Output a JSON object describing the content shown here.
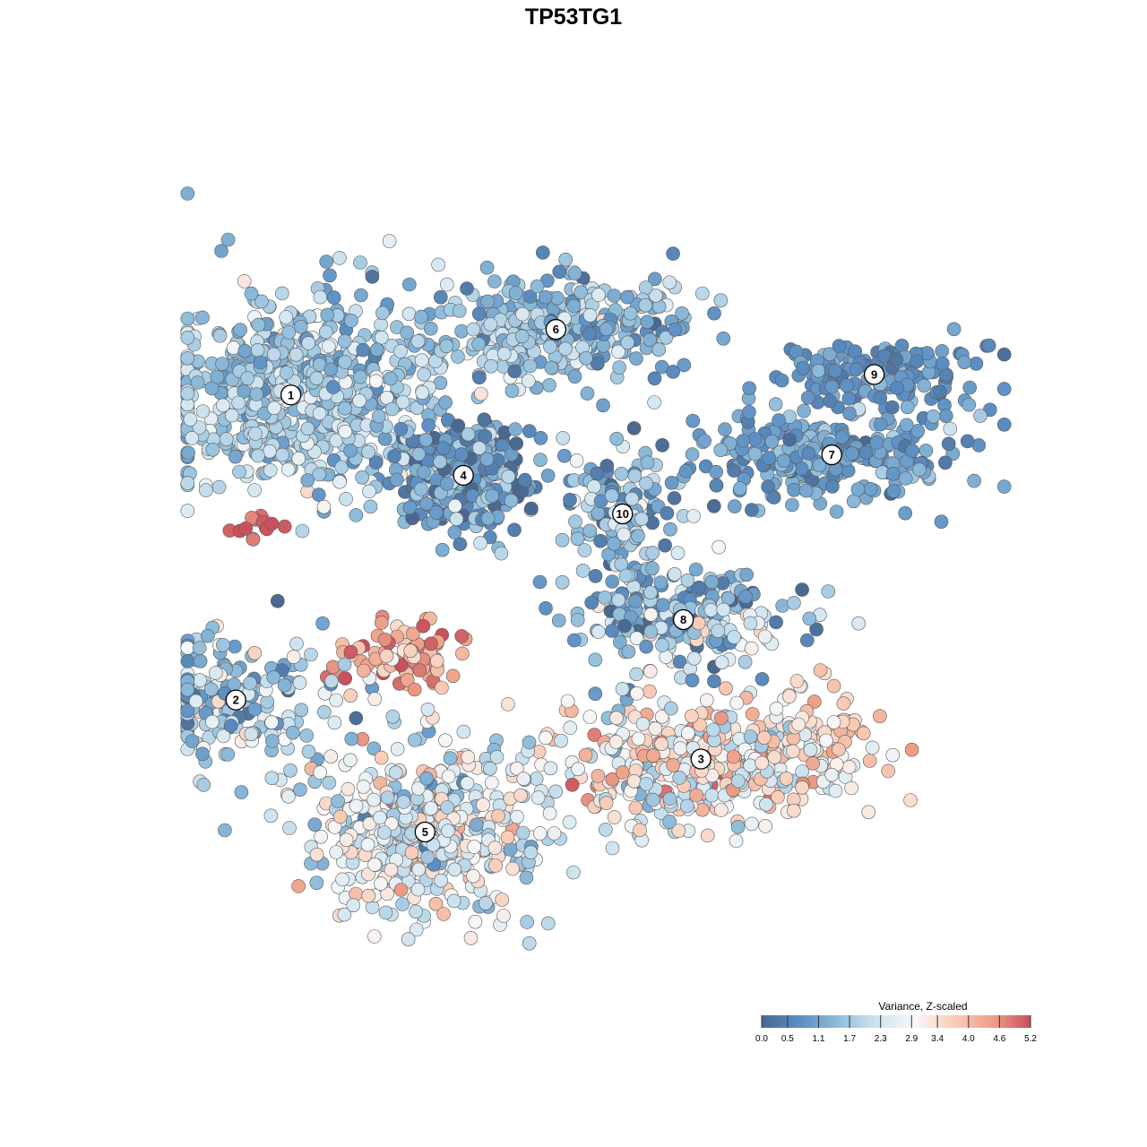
{
  "chart_data": {
    "type": "scatter",
    "title": "TP53TG1",
    "xlabel": "",
    "ylabel": "",
    "xlim": [
      0,
      100
    ],
    "ylim": [
      0,
      100
    ],
    "grid": false,
    "legend": {
      "title": "Variance, Z-scaled",
      "placement": "bottom-right",
      "range": [
        0.0,
        5.2
      ],
      "ticks": [
        "0.0",
        "0.5",
        "1.1",
        "1.7",
        "2.3",
        "2.9",
        "3.4",
        "4.0",
        "4.6",
        "5.2"
      ],
      "colors": [
        "#4a6890",
        "#5b8fc4",
        "#8fbddb",
        "#cfe4f0",
        "#f7f7f7",
        "#f9cdb8",
        "#efa089",
        "#c9505c"
      ]
    },
    "point_color_edge": "#5a5a5a",
    "clusters": [
      {
        "id": "1",
        "label": "1",
        "x": 13.4,
        "y": 71.5,
        "sx": 11.5,
        "sy": 7.5,
        "n": 650,
        "mean": 1.8,
        "sd": 0.55
      },
      {
        "id": "2",
        "label": "2",
        "x": 6.8,
        "y": 34.3,
        "sx": 7.5,
        "sy": 5.0,
        "n": 200,
        "mean": 1.7,
        "sd": 0.9
      },
      {
        "id": "3",
        "label": "3",
        "x": 62.6,
        "y": 27.1,
        "sx": 11.5,
        "sy": 5.0,
        "n": 420,
        "mean": 2.9,
        "sd": 0.9
      },
      {
        "id": "4",
        "label": "4",
        "x": 34.1,
        "y": 61.7,
        "sx": 5.0,
        "sy": 4.5,
        "n": 320,
        "mean": 0.9,
        "sd": 0.6
      },
      {
        "id": "5",
        "label": "5",
        "x": 29.5,
        "y": 18.2,
        "sx": 8.5,
        "sy": 6.5,
        "n": 460,
        "mean": 2.6,
        "sd": 0.8
      },
      {
        "id": "6",
        "label": "6",
        "x": 45.2,
        "y": 79.5,
        "sx": 9.5,
        "sy": 4.0,
        "n": 330,
        "mean": 1.5,
        "sd": 0.6
      },
      {
        "id": "7",
        "label": "7",
        "x": 78.3,
        "y": 64.2,
        "sx": 9.5,
        "sy": 3.5,
        "n": 300,
        "mean": 1.0,
        "sd": 0.4
      },
      {
        "id": "8",
        "label": "8",
        "x": 60.5,
        "y": 44.1,
        "sx": 8.0,
        "sy": 3.5,
        "n": 230,
        "mean": 1.6,
        "sd": 0.9
      },
      {
        "id": "9",
        "label": "9",
        "x": 83.4,
        "y": 74.0,
        "sx": 7.5,
        "sy": 2.5,
        "n": 160,
        "mean": 0.8,
        "sd": 0.3
      },
      {
        "id": "10",
        "label": "10",
        "x": 53.2,
        "y": 57.0,
        "sx": 5.0,
        "sy": 6.0,
        "n": 130,
        "mean": 1.3,
        "sd": 0.7
      }
    ],
    "hotspots": [
      {
        "x": 26.7,
        "y": 39.3,
        "sx": 5.0,
        "sy": 3.0,
        "n": 90,
        "mean": 4.3,
        "sd": 0.6
      },
      {
        "x": 9.5,
        "y": 55.5,
        "sx": 1.5,
        "sy": 1.2,
        "n": 14,
        "mean": 4.9,
        "sd": 0.3
      },
      {
        "x": 78.0,
        "y": 31.5,
        "sx": 4.0,
        "sy": 3.0,
        "n": 45,
        "mean": 3.5,
        "sd": 0.4
      }
    ]
  }
}
